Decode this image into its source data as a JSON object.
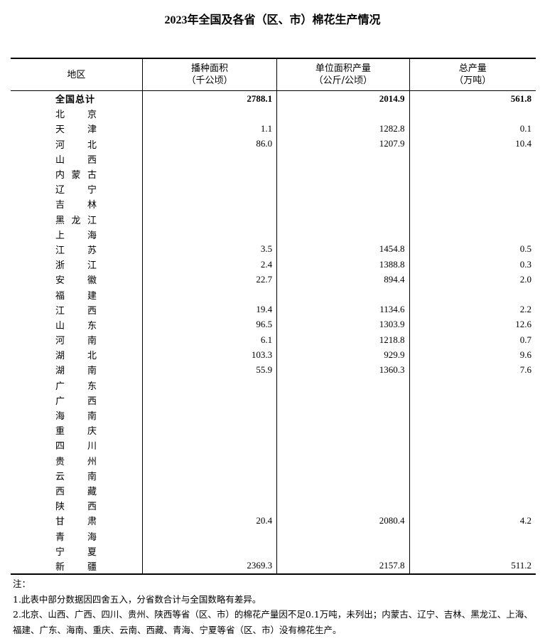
{
  "title": "2023年全国及各省（区、市）棉花生产情况",
  "headers": [
    {
      "label": "地区",
      "unit": ""
    },
    {
      "label": "播种面积",
      "unit": "（千公顷）"
    },
    {
      "label": "单位面积产量",
      "unit": "（公斤/公顷）"
    },
    {
      "label": "总产量",
      "unit": "（万吨）"
    }
  ],
  "rows": [
    {
      "region": "全国总计",
      "area": "2788.1",
      "yield": "2014.9",
      "output": "561.8"
    },
    {
      "region": "北京",
      "area": "",
      "yield": "",
      "output": ""
    },
    {
      "region": "天津",
      "area": "1.1",
      "yield": "1282.8",
      "output": "0.1"
    },
    {
      "region": "河北",
      "area": "86.0",
      "yield": "1207.9",
      "output": "10.4"
    },
    {
      "region": "山西",
      "area": "",
      "yield": "",
      "output": ""
    },
    {
      "region": "内蒙古",
      "area": "",
      "yield": "",
      "output": ""
    },
    {
      "region": "辽宁",
      "area": "",
      "yield": "",
      "output": ""
    },
    {
      "region": "吉林",
      "area": "",
      "yield": "",
      "output": ""
    },
    {
      "region": "黑龙江",
      "area": "",
      "yield": "",
      "output": ""
    },
    {
      "region": "上海",
      "area": "",
      "yield": "",
      "output": ""
    },
    {
      "region": "江苏",
      "area": "3.5",
      "yield": "1454.8",
      "output": "0.5"
    },
    {
      "region": "浙江",
      "area": "2.4",
      "yield": "1388.8",
      "output": "0.3"
    },
    {
      "region": "安徽",
      "area": "22.7",
      "yield": "894.4",
      "output": "2.0"
    },
    {
      "region": "福建",
      "area": "",
      "yield": "",
      "output": ""
    },
    {
      "region": "江西",
      "area": "19.4",
      "yield": "1134.6",
      "output": "2.2"
    },
    {
      "region": "山东",
      "area": "96.5",
      "yield": "1303.9",
      "output": "12.6"
    },
    {
      "region": "河南",
      "area": "6.1",
      "yield": "1218.8",
      "output": "0.7"
    },
    {
      "region": "湖北",
      "area": "103.3",
      "yield": "929.9",
      "output": "9.6"
    },
    {
      "region": "湖南",
      "area": "55.9",
      "yield": "1360.3",
      "output": "7.6"
    },
    {
      "region": "广东",
      "area": "",
      "yield": "",
      "output": ""
    },
    {
      "region": "广西",
      "area": "",
      "yield": "",
      "output": ""
    },
    {
      "region": "海南",
      "area": "",
      "yield": "",
      "output": ""
    },
    {
      "region": "重庆",
      "area": "",
      "yield": "",
      "output": ""
    },
    {
      "region": "四川",
      "area": "",
      "yield": "",
      "output": ""
    },
    {
      "region": "贵州",
      "area": "",
      "yield": "",
      "output": ""
    },
    {
      "region": "云南",
      "area": "",
      "yield": "",
      "output": ""
    },
    {
      "region": "西藏",
      "area": "",
      "yield": "",
      "output": ""
    },
    {
      "region": "陕西",
      "area": "",
      "yield": "",
      "output": ""
    },
    {
      "region": "甘肃",
      "area": "20.4",
      "yield": "2080.4",
      "output": "4.2"
    },
    {
      "region": "青海",
      "area": "",
      "yield": "",
      "output": ""
    },
    {
      "region": "宁夏",
      "area": "",
      "yield": "",
      "output": ""
    },
    {
      "region": "新疆",
      "area": "2369.3",
      "yield": "2157.8",
      "output": "511.2"
    }
  ],
  "notes": {
    "label": "注：",
    "items": [
      "1.此表中部分数据因四舍五入，分省数合计与全国数略有差异。",
      "2.北京、山西、广西、四川、贵州、陕西等省（区、市）的棉花产量因不足0.1万吨，未列出；内蒙古、辽宁、吉林、黑龙江、上海、福建、广东、海南、重庆、云南、西藏、青海、宁夏等省（区、市）没有棉花生产。"
    ]
  }
}
